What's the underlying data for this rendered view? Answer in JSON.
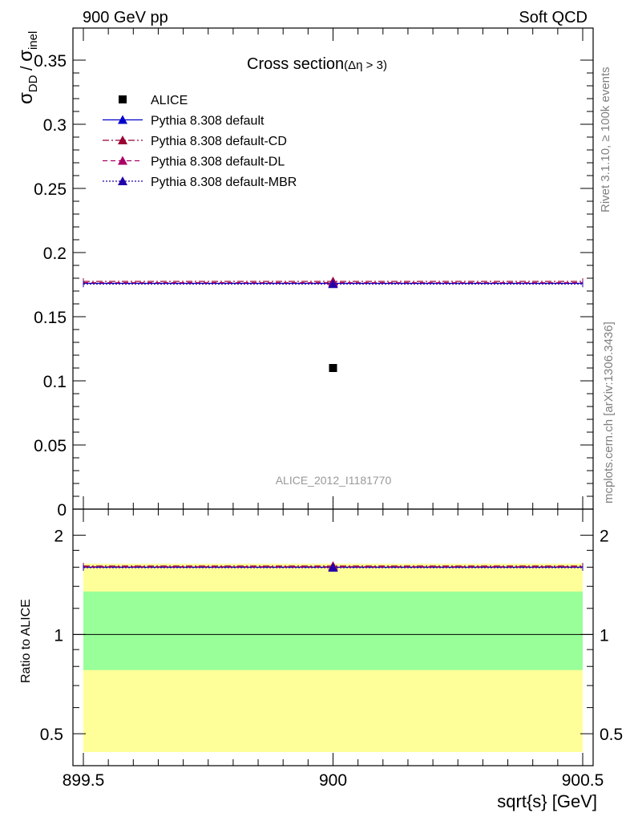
{
  "header": {
    "left_label": "900 GeV pp",
    "right_label": "Soft QCD"
  },
  "side_labels": {
    "rivet": "Rivet 3.1.10, ≥ 100k events",
    "source": "mcplots.cern.ch [arXiv:1306.3436]"
  },
  "chart_data": [
    {
      "type": "scatter",
      "panel": "main",
      "title": "Cross section",
      "title_condition": "(Δη > 3)",
      "ylabel_main": "σ",
      "ylabel_main_sub": "DD",
      "ylabel_sep": " / ",
      "ylabel_denom": "σ",
      "ylabel_denom_sub": "inel",
      "analysis_label": "ALICE_2012_I1181770",
      "xlim": [
        899.5,
        900.5
      ],
      "ylim": [
        0,
        0.375
      ],
      "yticks": [
        0,
        0.05,
        0.1,
        0.15,
        0.2,
        0.25,
        0.3,
        0.35
      ],
      "ytick_labels": [
        "0",
        "0.05",
        "0.1",
        "0.15",
        "0.2",
        "0.25",
        "0.3",
        "0.35"
      ],
      "legend_position": "top-left",
      "series": [
        {
          "name": "ALICE",
          "kind": "data",
          "marker": "square",
          "color": "#000000",
          "x": [
            900
          ],
          "y": [
            0.11
          ]
        },
        {
          "name": "Pythia 8.308 default",
          "kind": "mc",
          "marker": "triangle",
          "color": "#0000cc",
          "line": "solid",
          "x_range": [
            899.5,
            900.5
          ],
          "y": 0.176
        },
        {
          "name": "Pythia 8.308 default-CD",
          "kind": "mc",
          "marker": "triangle",
          "color": "#990033",
          "line": "dashdot",
          "x_range": [
            899.5,
            900.5
          ],
          "y": 0.1775
        },
        {
          "name": "Pythia 8.308 default-DL",
          "kind": "mc",
          "marker": "triangle",
          "color": "#aa0066",
          "line": "dashed",
          "x_range": [
            899.5,
            900.5
          ],
          "y": 0.1765
        },
        {
          "name": "Pythia 8.308 default-MBR",
          "kind": "mc",
          "marker": "triangle",
          "color": "#2200aa",
          "line": "dotted",
          "x_range": [
            899.5,
            900.5
          ],
          "y": 0.1755
        }
      ]
    },
    {
      "type": "scatter",
      "panel": "ratio",
      "ylabel": "Ratio to ALICE",
      "xlabel": "sqrt{s} [GeV]",
      "xlim": [
        899.5,
        900.5
      ],
      "xticks": [
        899.5,
        900,
        900.5
      ],
      "xtick_labels": [
        "899.5",
        "900",
        "900.5"
      ],
      "ylim": [
        0.4,
        2.4
      ],
      "yticks": [
        0.5,
        1,
        2
      ],
      "ytick_labels": [
        "0.5",
        "1",
        "2"
      ],
      "bands": [
        {
          "name": "outer",
          "color": "#ffff99",
          "range": [
            0.44,
            1.64
          ]
        },
        {
          "name": "inner",
          "color": "#99ff99",
          "range": [
            0.78,
            1.35
          ]
        }
      ],
      "series": [
        {
          "name": "Pythia 8.308 default",
          "color": "#0000cc",
          "line": "solid",
          "y": 1.6
        },
        {
          "name": "Pythia 8.308 default-CD",
          "color": "#990033",
          "line": "dashdot",
          "y": 1.613
        },
        {
          "name": "Pythia 8.308 default-DL",
          "color": "#aa0066",
          "line": "dashed",
          "y": 1.605
        },
        {
          "name": "Pythia 8.308 default-MBR",
          "color": "#2200aa",
          "line": "dotted",
          "y": 1.595
        }
      ]
    }
  ]
}
